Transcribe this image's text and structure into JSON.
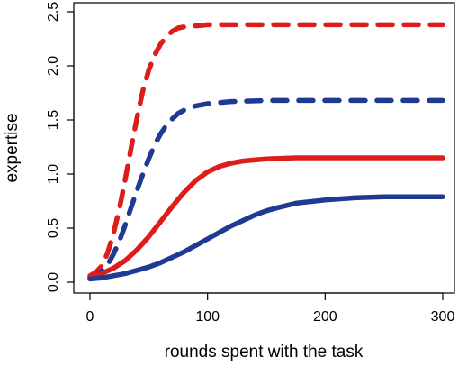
{
  "chart_data": {
    "type": "line",
    "title": "",
    "xlabel": "rounds spent with the task",
    "ylabel": "expertise",
    "xlim": [
      0,
      300
    ],
    "ylim": [
      0,
      2.5
    ],
    "xticks": [
      "0",
      "100",
      "200",
      "300"
    ],
    "yticks": [
      "0.0",
      "0.5",
      "1.0",
      "1.5",
      "2.0",
      "2.5"
    ],
    "grid": false,
    "legend": "none",
    "series": [
      {
        "color": "#dd1c1c",
        "style": "dashed",
        "x": [
          0,
          5,
          10,
          15,
          20,
          25,
          30,
          35,
          40,
          45,
          50,
          55,
          60,
          65,
          70,
          75,
          80,
          90,
          100,
          125,
          150,
          200,
          250,
          300
        ],
        "y": [
          0.06,
          0.09,
          0.15,
          0.27,
          0.45,
          0.68,
          0.95,
          1.24,
          1.52,
          1.77,
          1.96,
          2.1,
          2.2,
          2.27,
          2.32,
          2.35,
          2.36,
          2.37,
          2.38,
          2.38,
          2.38,
          2.38,
          2.38,
          2.38
        ]
      },
      {
        "color": "#1f3a93",
        "style": "dashed",
        "x": [
          0,
          5,
          10,
          15,
          20,
          25,
          30,
          35,
          40,
          45,
          50,
          55,
          60,
          65,
          70,
          75,
          80,
          90,
          100,
          110,
          120,
          150,
          200,
          250,
          300
        ],
        "y": [
          0.04,
          0.06,
          0.1,
          0.16,
          0.26,
          0.38,
          0.53,
          0.69,
          0.85,
          1.0,
          1.14,
          1.27,
          1.37,
          1.45,
          1.51,
          1.56,
          1.59,
          1.63,
          1.65,
          1.66,
          1.67,
          1.68,
          1.68,
          1.68,
          1.68
        ]
      },
      {
        "color": "#dd1c1c",
        "style": "solid",
        "x": [
          0,
          10,
          20,
          30,
          40,
          50,
          60,
          70,
          80,
          90,
          100,
          110,
          120,
          130,
          140,
          150,
          175,
          200,
          250,
          300
        ],
        "y": [
          0.05,
          0.08,
          0.13,
          0.2,
          0.3,
          0.42,
          0.56,
          0.7,
          0.83,
          0.94,
          1.02,
          1.07,
          1.1,
          1.12,
          1.13,
          1.14,
          1.15,
          1.15,
          1.15,
          1.15
        ]
      },
      {
        "color": "#1f3a93",
        "style": "solid",
        "x": [
          0,
          10,
          20,
          30,
          40,
          50,
          60,
          70,
          80,
          90,
          100,
          110,
          120,
          130,
          140,
          150,
          160,
          175,
          200,
          225,
          250,
          275,
          300
        ],
        "y": [
          0.03,
          0.04,
          0.06,
          0.08,
          0.11,
          0.14,
          0.18,
          0.23,
          0.28,
          0.34,
          0.4,
          0.46,
          0.52,
          0.57,
          0.62,
          0.66,
          0.69,
          0.73,
          0.76,
          0.78,
          0.79,
          0.79,
          0.79
        ]
      }
    ]
  }
}
